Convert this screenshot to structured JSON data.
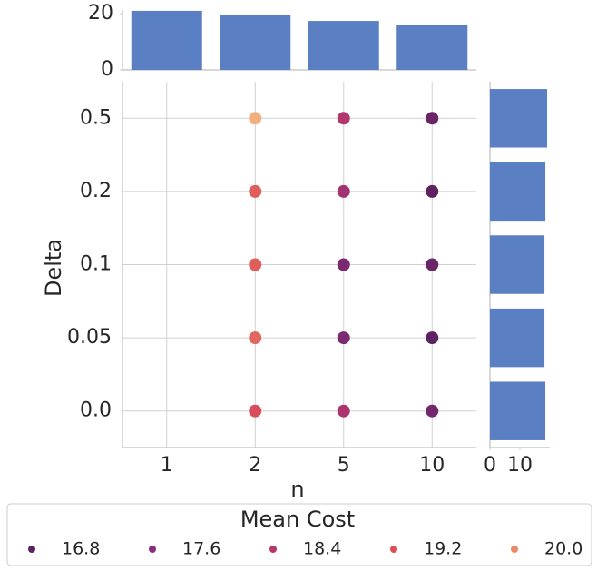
{
  "chart_data": [
    {
      "type": "scatter",
      "x_label": "n",
      "y_label": "Delta",
      "x_categories": [
        "1",
        "2",
        "5",
        "10"
      ],
      "y_categories": [
        "0.5",
        "0.2",
        "0.1",
        "0.05",
        "0.0"
      ],
      "values": [
        [
          null,
          20.1,
          18.3,
          17.0
        ],
        [
          null,
          19.4,
          18.0,
          16.8
        ],
        [
          null,
          19.4,
          17.3,
          17.0
        ],
        [
          null,
          19.5,
          17.3,
          16.7
        ],
        [
          null,
          19.1,
          18.2,
          17.2
        ]
      ],
      "grid": true,
      "legend": {
        "title": "Mean Cost",
        "position": "bottom",
        "entries": [
          {
            "value": 16.8,
            "color": "#5e2263"
          },
          {
            "value": 17.6,
            "color": "#8c2d79"
          },
          {
            "value": 18.4,
            "color": "#b8386c"
          },
          {
            "value": 19.2,
            "color": "#dc5058"
          },
          {
            "value": {
              "value": 20.0,
              "label": "20.0"
            },
            "color": "#ea8a64"
          }
        ]
      },
      "color_high": "#f1b07e"
    },
    {
      "type": "bar",
      "values": [
        21.0,
        19.7,
        17.4,
        16.1
      ],
      "color": "#5a7fc3",
      "ylim": [
        0,
        21.3
      ],
      "yticks": [
        0,
        20
      ]
    },
    {
      "type": "barh",
      "values": [
        19.1,
        18.5,
        18.2,
        18.2,
        18.5
      ],
      "color": "#5a7fc3",
      "xlim": [
        0,
        20
      ],
      "xticks": [
        0,
        10
      ]
    }
  ]
}
